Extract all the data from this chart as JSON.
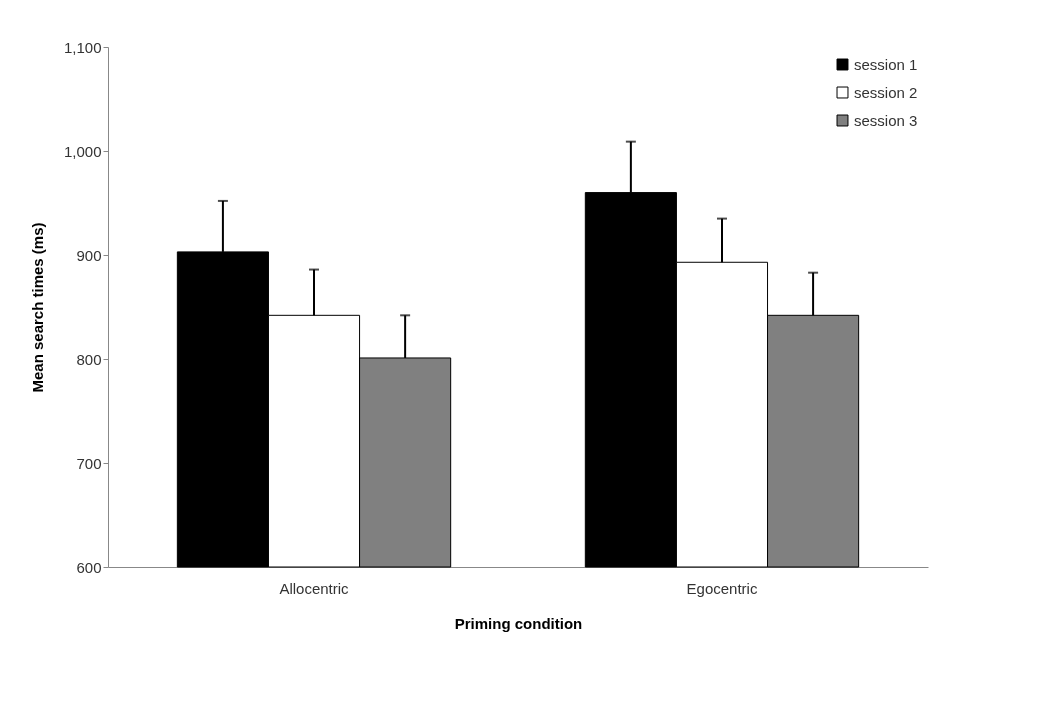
{
  "chart_data": {
    "type": "bar",
    "xlabel": "Priming condition",
    "ylabel": "Mean search times (ms)",
    "categories": [
      "Allocentric",
      "Egocentric"
    ],
    "series": [
      {
        "name": "session 1",
        "color": "#000000",
        "values": [
          903,
          960
        ],
        "errors": [
          [
            903,
            952
          ],
          [
            960,
            1009
          ]
        ]
      },
      {
        "name": "session 2",
        "color": "#ffffff",
        "values": [
          842,
          893
        ],
        "errors": [
          [
            842,
            886
          ],
          [
            893,
            935
          ]
        ]
      },
      {
        "name": "session 3",
        "color": "#808080",
        "values": [
          801,
          842
        ],
        "errors": [
          [
            801,
            842
          ],
          [
            842,
            883
          ]
        ]
      }
    ],
    "ylim": [
      600,
      1100
    ],
    "yticks": [
      600,
      {
        "value": 700,
        "label": "700"
      },
      {
        "value": 800,
        "label": "800"
      },
      {
        "value": 900,
        "label": "900"
      },
      {
        "value": 1000,
        "label": "1,000"
      },
      {
        "value": 1100,
        "label": "1,100"
      }
    ],
    "grid": false,
    "legend": "top right"
  }
}
